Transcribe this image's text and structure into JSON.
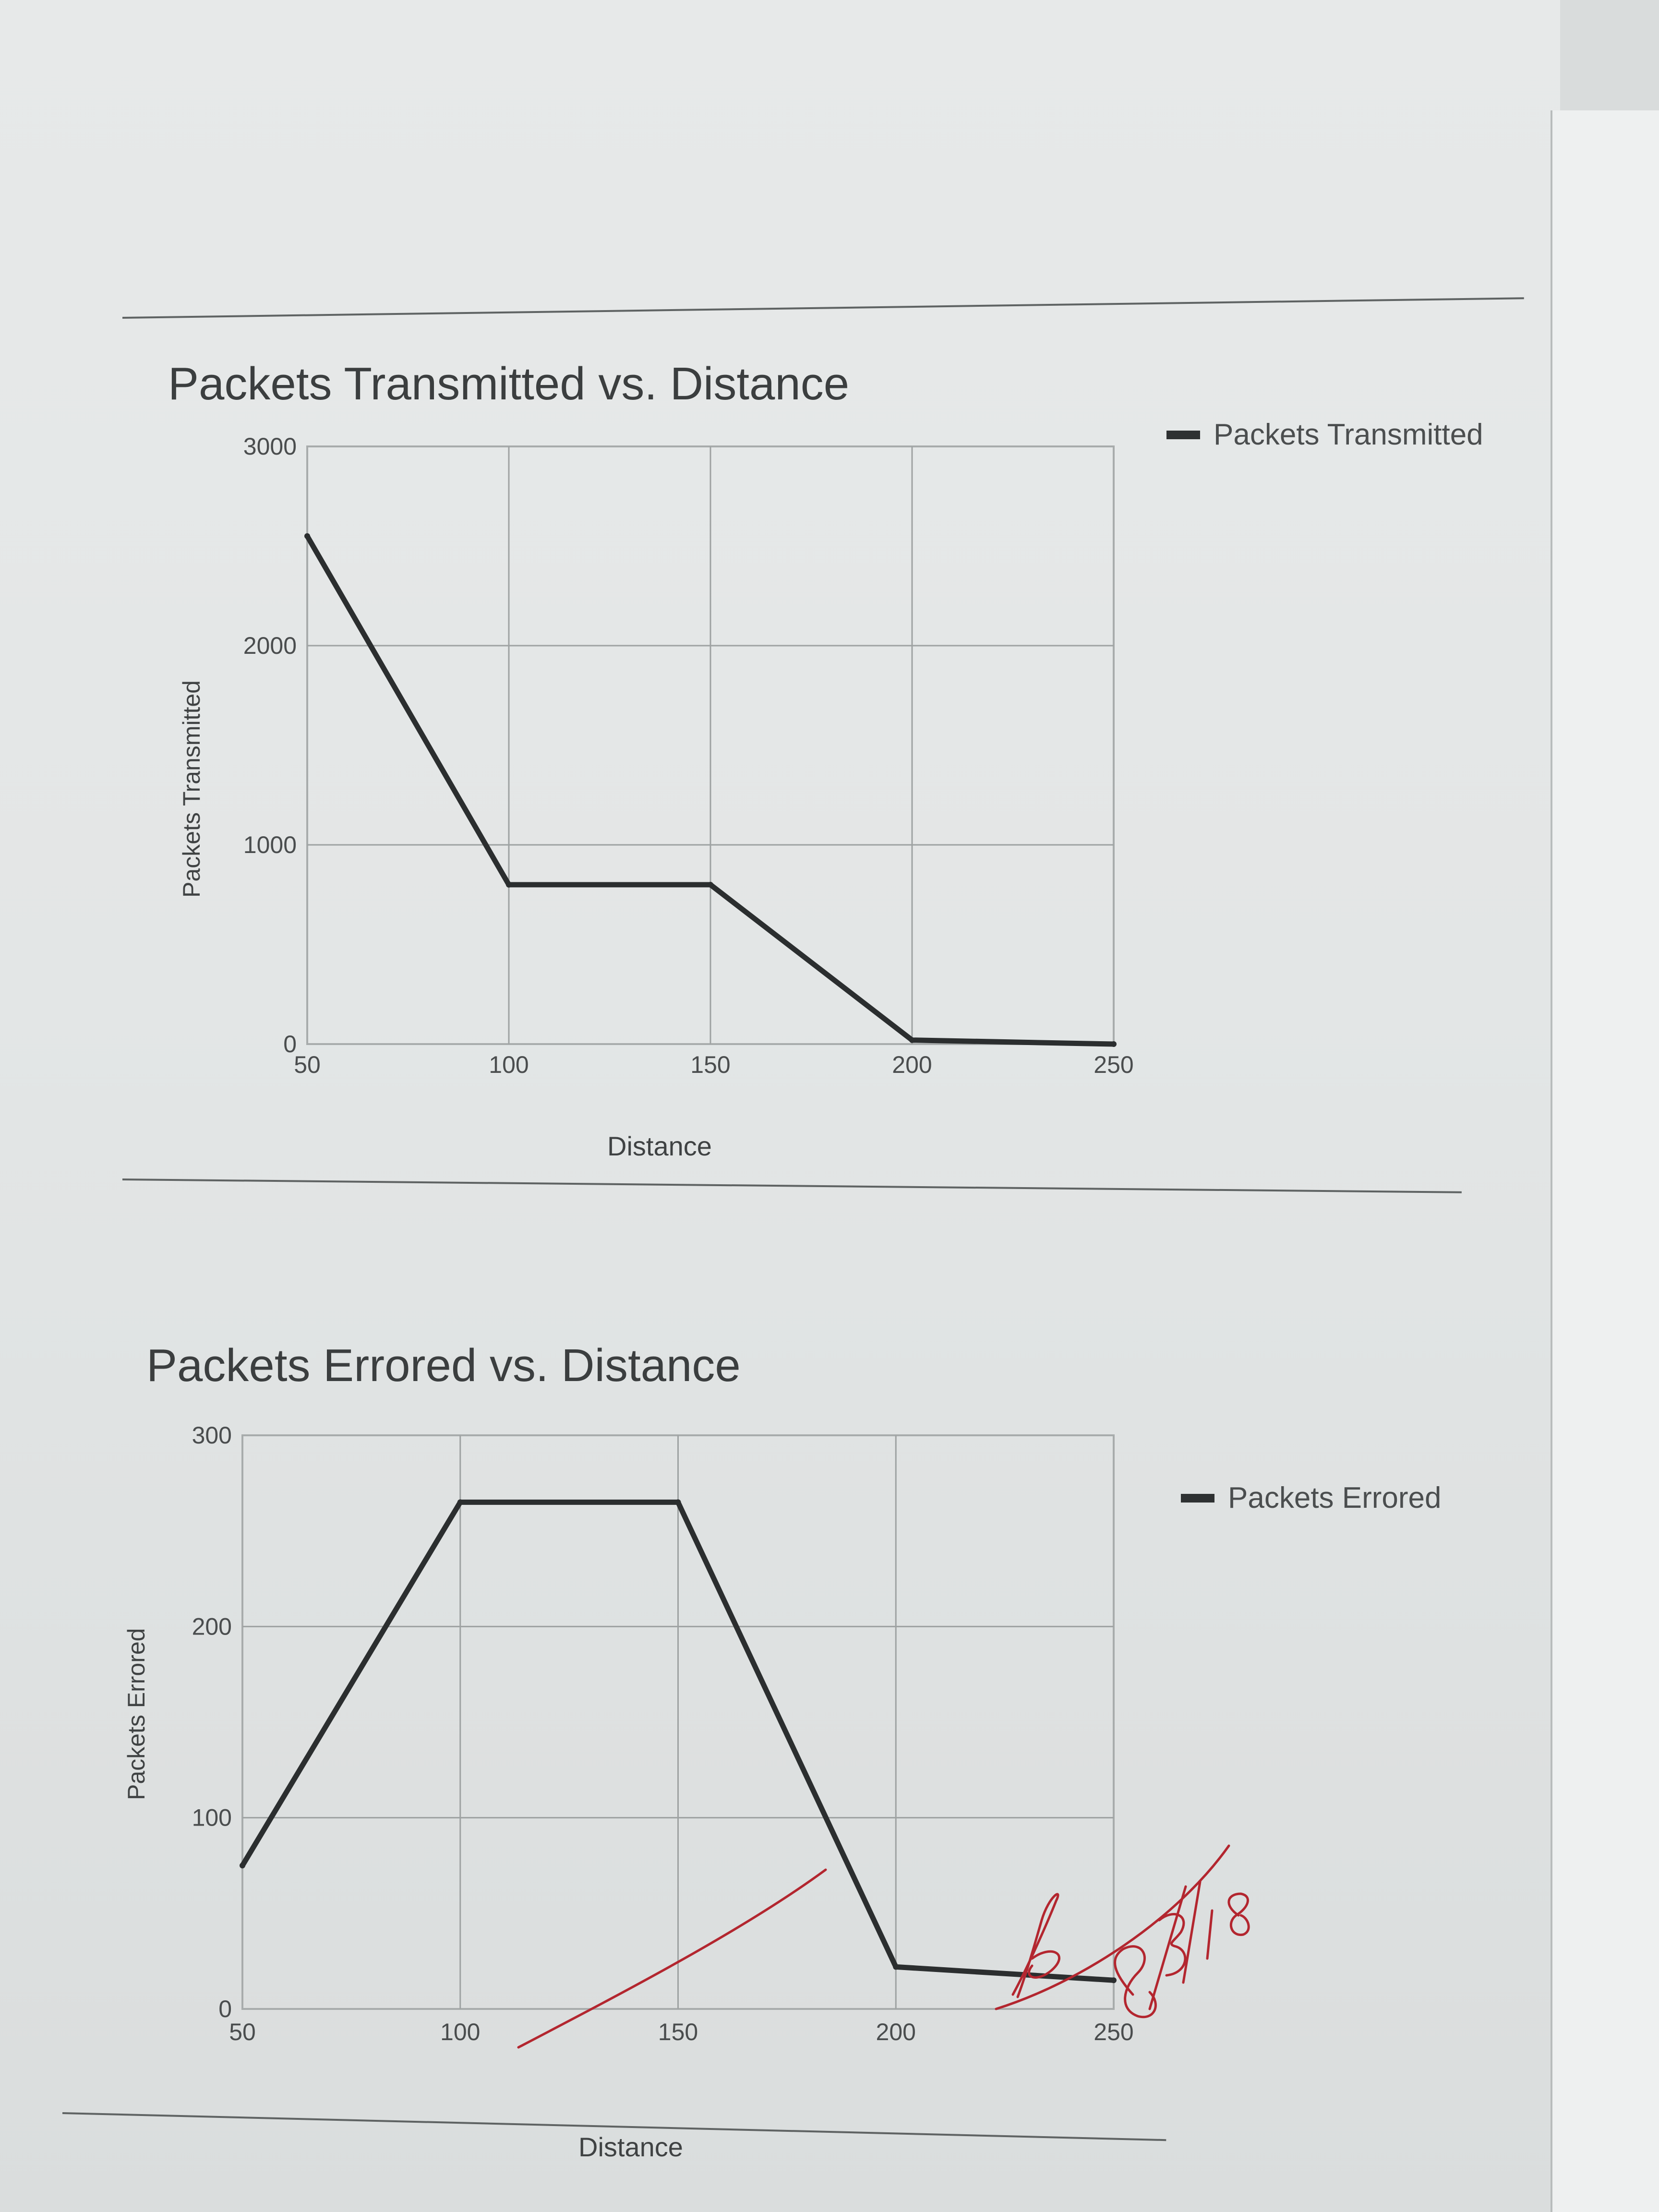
{
  "chart_data": [
    {
      "type": "line",
      "title": "Packets Transmitted vs. Distance",
      "xlabel": "Distance",
      "ylabel": "Packets Transmitted",
      "x": [
        50,
        100,
        150,
        200,
        250
      ],
      "series": [
        {
          "name": "Packets Transmitted",
          "values": [
            2550,
            800,
            800,
            20,
            0
          ]
        }
      ],
      "xlim": [
        50,
        250
      ],
      "ylim": [
        0,
        3000
      ],
      "x_ticks": [
        "50",
        "100",
        "150",
        "200",
        "250"
      ],
      "y_ticks": [
        "0",
        "1000",
        "2000",
        "3000"
      ],
      "grid": true,
      "legend": "right",
      "colors": {
        "series": "#2b2e2f"
      }
    },
    {
      "type": "line",
      "title": "Packets Errored vs. Distance",
      "xlabel": "Distance",
      "ylabel": "Packets Errored",
      "x": [
        50,
        100,
        150,
        200,
        250
      ],
      "series": [
        {
          "name": "Packets Errored",
          "values": [
            75,
            265,
            265,
            22,
            15
          ]
        }
      ],
      "xlim": [
        50,
        250
      ],
      "ylim": [
        0,
        300
      ],
      "x_ticks": [
        "50",
        "100",
        "150",
        "200",
        "250"
      ],
      "y_ticks": [
        "0",
        "100",
        "200",
        "300"
      ],
      "grid": true,
      "legend": "right",
      "colors": {
        "series": "#2b2e2f"
      }
    }
  ],
  "annotation": {
    "handwritten_date": "8/3/18"
  }
}
